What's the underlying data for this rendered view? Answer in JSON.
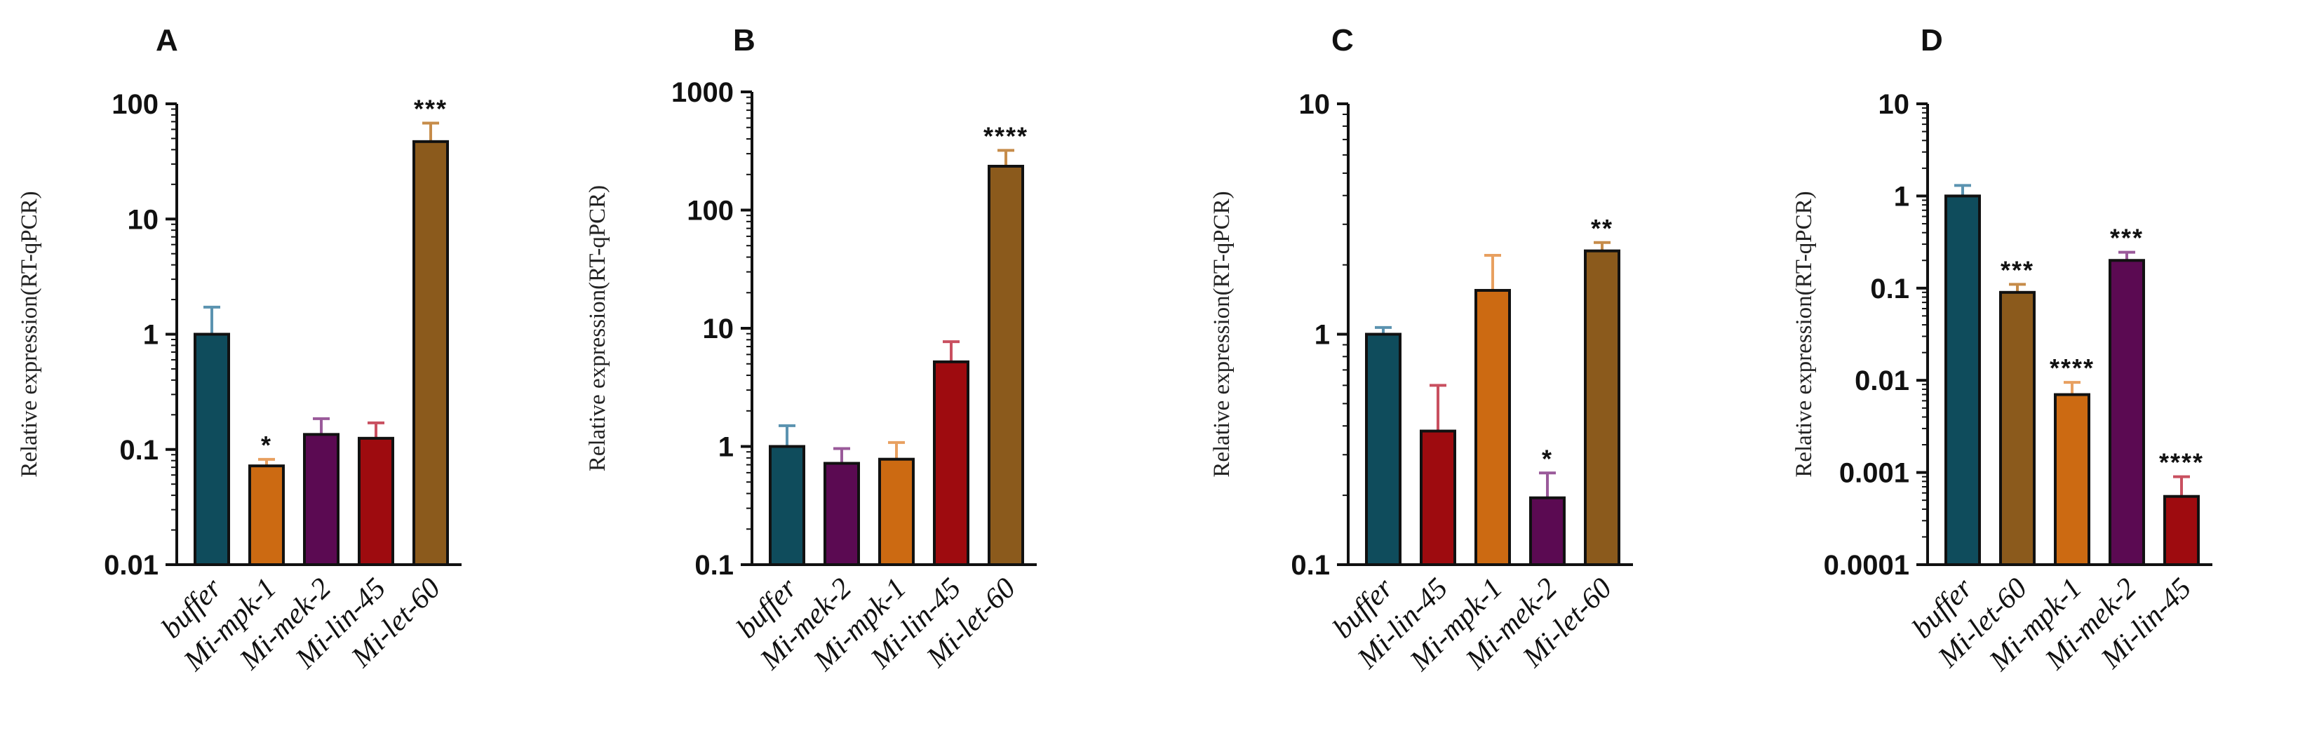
{
  "colors": {
    "buffer": "#0f4c5c",
    "mpk1": "#cc6a12",
    "mek2": "#5b0a52",
    "lin45": "#9e0b0f",
    "let60": "#8b5a1c",
    "err_buffer": "#5b93b0",
    "err_mpk1": "#e8a060",
    "err_mek2": "#9a5a9a",
    "err_lin45": "#c95060",
    "err_let60": "#c68c4a"
  },
  "chart_data": [
    {
      "panel": "A",
      "type": "bar",
      "yscale": "log",
      "ylim": [
        0.01,
        100
      ],
      "yticks": [
        "0.01",
        "0.1",
        "1",
        "10",
        "100"
      ],
      "ylabel": "Relative expression(RT-qPCR)",
      "categories": [
        "buffer",
        "Mi-mpk-1",
        "Mi-mek-2",
        "Mi-lin-45",
        "Mi-let-60"
      ],
      "values": [
        1.0,
        0.072,
        0.135,
        0.125,
        47
      ],
      "errors_upper": [
        1.72,
        0.082,
        0.185,
        0.17,
        68
      ],
      "colors": [
        "buffer",
        "mpk1",
        "mek2",
        "lin45",
        "let60"
      ],
      "significance": [
        "",
        "*",
        "",
        "",
        "***"
      ]
    },
    {
      "panel": "B",
      "type": "bar",
      "yscale": "log",
      "ylim": [
        0.1,
        1000
      ],
      "yticks": [
        "0.1",
        "1",
        "10",
        "100",
        "1000"
      ],
      "ylabel": "Relative expression(RT-qPCR)",
      "categories": [
        "buffer",
        "Mi-mek-2",
        "Mi-mpk-1",
        "Mi-lin-45",
        "Mi-let-60"
      ],
      "values": [
        1.0,
        0.72,
        0.78,
        5.2,
        235
      ],
      "errors_upper": [
        1.5,
        0.96,
        1.08,
        7.7,
        320
      ],
      "colors": [
        "buffer",
        "mek2",
        "mpk1",
        "lin45",
        "let60"
      ],
      "significance": [
        "",
        "",
        "",
        "",
        "****"
      ]
    },
    {
      "panel": "C",
      "type": "bar",
      "yscale": "log",
      "ylim": [
        0.1,
        10
      ],
      "yticks": [
        "0.1",
        "1",
        "10"
      ],
      "ylabel": "Relative expression(RT-qPCR)",
      "categories": [
        "buffer",
        "Mi-lin-45",
        "Mi-mpk-1",
        "Mi-mek-2",
        "Mi-let-60"
      ],
      "values": [
        1.0,
        0.38,
        1.55,
        0.195,
        2.3
      ],
      "errors_upper": [
        1.07,
        0.6,
        2.2,
        0.25,
        2.5
      ],
      "colors": [
        "buffer",
        "lin45",
        "mpk1",
        "mek2",
        "let60"
      ],
      "significance": [
        "",
        "",
        "",
        "*",
        "**"
      ]
    },
    {
      "panel": "D",
      "type": "bar",
      "yscale": "log",
      "ylim": [
        0.0001,
        10
      ],
      "yticks": [
        "0.0001",
        "0.001",
        "0.01",
        "0.1",
        "1",
        "10"
      ],
      "ylabel": "Relative expression(RT-qPCR)",
      "categories": [
        "buffer",
        "Mi-let-60",
        "Mi-mpk-1",
        "Mi-mek-2",
        "Mi-lin-45"
      ],
      "values": [
        1.0,
        0.09,
        0.007,
        0.2,
        0.00055
      ],
      "errors_upper": [
        1.3,
        0.11,
        0.0095,
        0.245,
        0.0009
      ],
      "colors": [
        "buffer",
        "let60",
        "mpk1",
        "mek2",
        "lin45"
      ],
      "significance": [
        "",
        "***",
        "****",
        "***",
        "****"
      ]
    }
  ]
}
